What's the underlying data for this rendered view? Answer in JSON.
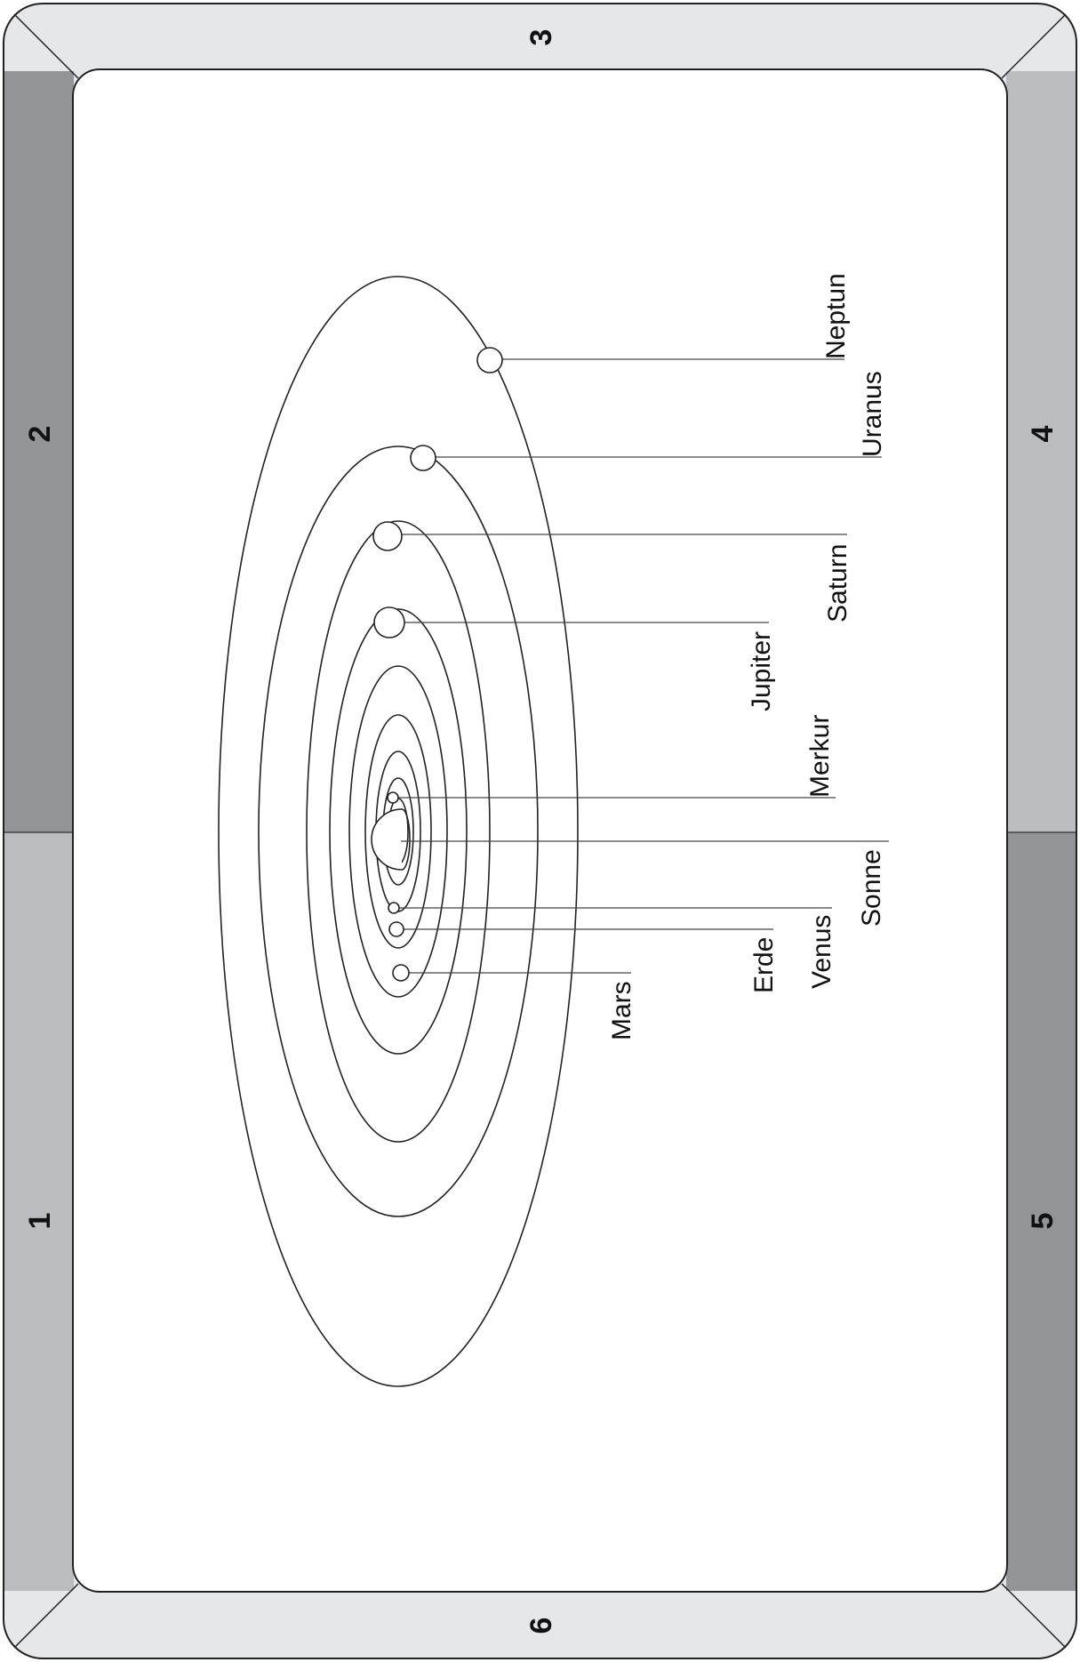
{
  "colors": {
    "panel_light": "#e6e7e9",
    "panel_medium": "#bbbcc0",
    "panel_dark": "#939498",
    "board": "#ffffff",
    "line": "#222222"
  },
  "segments": [
    {
      "id": "1",
      "label": "1"
    },
    {
      "id": "2",
      "label": "2"
    },
    {
      "id": "3",
      "label": "3"
    },
    {
      "id": "4",
      "label": "4"
    },
    {
      "id": "5",
      "label": "5"
    },
    {
      "id": "6",
      "label": "6"
    }
  ],
  "planets": [
    {
      "key": "sonne",
      "label": "Sonne"
    },
    {
      "key": "merkur",
      "label": "Merkur"
    },
    {
      "key": "venus",
      "label": "Venus"
    },
    {
      "key": "erde",
      "label": "Erde"
    },
    {
      "key": "mars",
      "label": "Mars"
    },
    {
      "key": "jupiter",
      "label": "Jupiter"
    },
    {
      "key": "saturn",
      "label": "Saturn"
    },
    {
      "key": "uranus",
      "label": "Uranus"
    },
    {
      "key": "neptun",
      "label": "Neptun"
    }
  ]
}
